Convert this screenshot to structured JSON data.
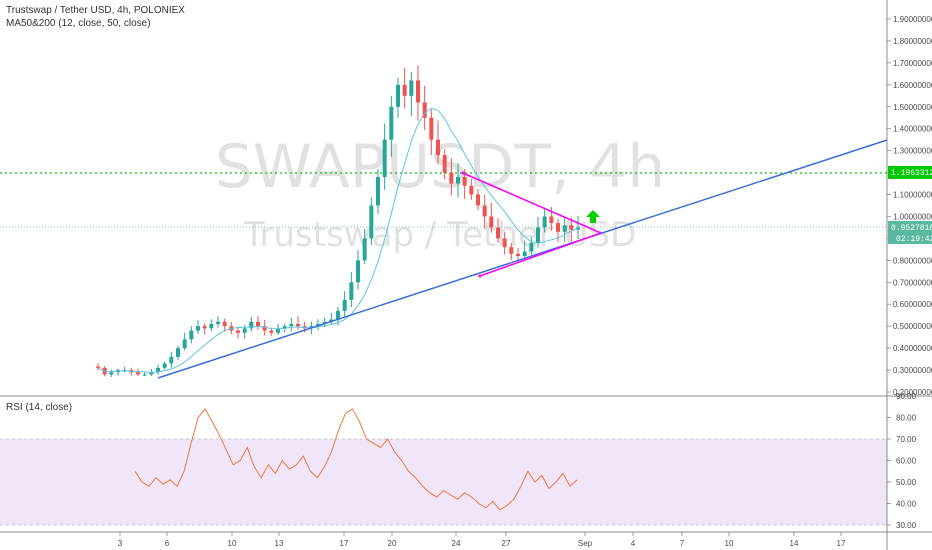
{
  "legend": {
    "title": "Trustswap / Tether USD, 4h, POLONIEX",
    "study": "MA50&200 (12, close, 50, close)",
    "rsi": "RSI (14, close)"
  },
  "watermark": {
    "symbol": "SWAPUSDT, 4h",
    "name": "Trustswap / Tether USD"
  },
  "colors": {
    "up": "#26a69a",
    "down": "#ef5350",
    "ma": "#5bc4e6",
    "trendline": "#3a6fd8",
    "triangle": "#ff00ff",
    "hline": "#00c800",
    "current": "#5ab7a0",
    "rsi_line": "#f4753a",
    "rsi_band": "#ead8f6",
    "arrow": "#00d000"
  },
  "price_axis": {
    "labels": [
      "0.20000000",
      "0.30000000",
      "0.40000000",
      "0.50000000",
      "0.60000000",
      "0.70000000",
      "0.80000000",
      "0.90000000",
      "1.00000000",
      "1.10000000",
      "1.20000000",
      "1.30000000",
      "1.40000000",
      "1.50000000",
      "1.60000000",
      "1.70000000",
      "1.80000000",
      "1.90000000"
    ],
    "current_price": "0.95278185",
    "countdown": "02:19:42",
    "level_label": "1.19633120"
  },
  "rsi_axis": {
    "labels": [
      "30.00",
      "40.00",
      "50.00",
      "60.00",
      "70.00",
      "80.00",
      "90.00"
    ]
  },
  "time_axis": {
    "labels": [
      "3",
      "6",
      "10",
      "13",
      "17",
      "20",
      "24",
      "27",
      "Sep",
      "4",
      "7",
      "10",
      "14",
      "17"
    ]
  },
  "chart_data": [
    {
      "type": "candlestick",
      "title": "Trustswap / Tether USD, 4h, POLONIEX",
      "x_axis": {
        "type": "date",
        "ticks": [
          "3",
          "6",
          "10",
          "13",
          "17",
          "20",
          "24",
          "27",
          "Sep",
          "4",
          "7",
          "10",
          "14",
          "17"
        ]
      },
      "y_axis": {
        "range": [
          0.2,
          1.98
        ],
        "ticks": [
          0.2,
          0.3,
          0.4,
          0.5,
          0.6,
          0.7,
          0.8,
          0.9,
          1.0,
          1.1,
          1.2,
          1.3,
          1.4,
          1.5,
          1.6,
          1.7,
          1.8,
          1.9
        ]
      },
      "price_path_close": [
        0.31,
        0.28,
        0.29,
        0.3,
        0.3,
        0.29,
        0.28,
        0.28,
        0.29,
        0.31,
        0.33,
        0.36,
        0.4,
        0.44,
        0.48,
        0.5,
        0.49,
        0.51,
        0.52,
        0.5,
        0.48,
        0.47,
        0.49,
        0.52,
        0.5,
        0.48,
        0.47,
        0.49,
        0.5,
        0.51,
        0.5,
        0.49,
        0.5,
        0.51,
        0.52,
        0.53,
        0.57,
        0.62,
        0.7,
        0.8,
        0.9,
        1.05,
        1.18,
        1.35,
        1.5,
        1.6,
        1.55,
        1.62,
        1.52,
        1.45,
        1.35,
        1.28,
        1.2,
        1.15,
        1.18,
        1.14,
        1.1,
        1.05,
        1.0,
        0.95,
        0.9,
        0.86,
        0.83,
        0.82,
        0.84,
        0.88,
        0.95,
        1.0,
        0.97,
        0.93,
        0.96,
        0.94,
        0.95
      ],
      "current_price": 0.95278185,
      "series": [
        {
          "name": "MA50&200",
          "type": "line"
        }
      ],
      "horizontal_lines": [
        {
          "value": 1.1963312,
          "style": "dotted"
        },
        {
          "value": 0.95278185,
          "style": "dotted"
        }
      ],
      "trendline": {
        "from": {
          "x": "5 Aug",
          "y": 0.28
        },
        "to": {
          "x": "18 Sep",
          "y": 1.35
        }
      },
      "triangle": {
        "apex": {
          "x": "1 Sep",
          "y": 0.93
        },
        "upper_start": 1.19,
        "lower_start": 0.79
      },
      "annotations": [
        "up arrow above triangle apex"
      ]
    },
    {
      "type": "line",
      "title": "RSI (14, close)",
      "y_axis": {
        "range": [
          28,
          92
        ],
        "ticks": [
          30,
          40,
          50,
          60,
          70,
          80,
          90
        ]
      },
      "band": [
        30,
        70
      ],
      "series": [
        {
          "name": "RSI",
          "values": [
            55,
            50,
            48,
            52,
            49,
            51,
            48,
            55,
            68,
            80,
            84,
            78,
            72,
            65,
            58,
            60,
            66,
            57,
            52,
            58,
            54,
            60,
            56,
            58,
            62,
            55,
            52,
            57,
            64,
            74,
            82,
            84,
            78,
            70,
            68,
            66,
            70,
            64,
            60,
            55,
            52,
            48,
            45,
            43,
            46,
            44,
            42,
            45,
            43,
            40,
            38,
            41,
            37,
            39,
            42,
            48,
            55,
            50,
            53,
            47,
            50,
            54,
            48,
            51
          ]
        }
      ]
    }
  ]
}
